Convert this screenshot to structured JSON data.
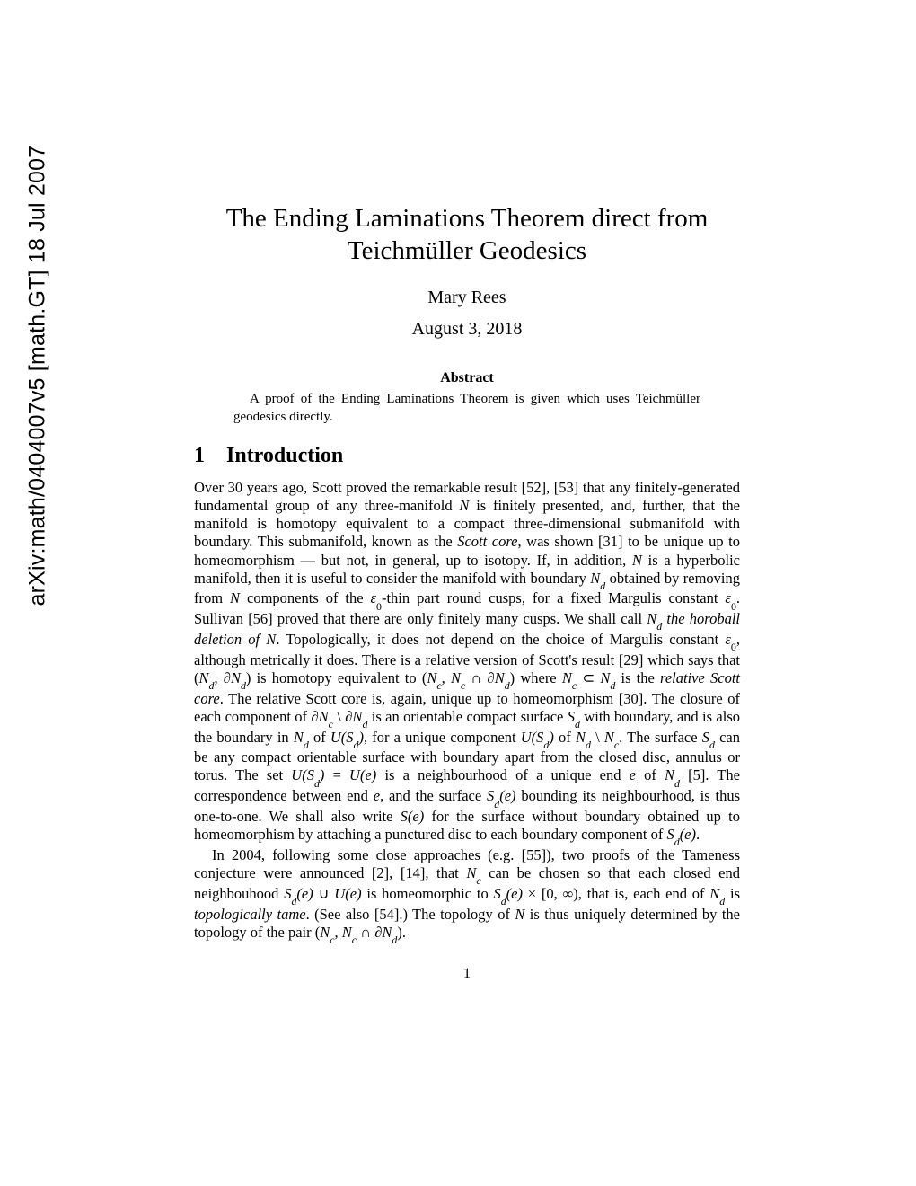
{
  "arxiv": "arXiv:math/0404007v5  [math.GT]  18 Jul 2007",
  "title_line1": "The Ending Laminations Theorem direct from",
  "title_line2": "Teichmüller Geodesics",
  "author": "Mary Rees",
  "date": "August 3, 2018",
  "abstract_heading": "Abstract",
  "abstract_body": "A proof of the Ending Laminations Theorem is given which uses Teichmüller geodesics directly.",
  "section_number": "1",
  "section_title": "Introduction",
  "para1_a": "Over 30 years ago, Scott proved the remarkable result [52], [53] that any finitely-generated fundamental group of any three-manifold ",
  "para1_b": " is finitely presented, and, further, that the manifold is homotopy equivalent to a compact three-dimensional submanifold with boundary. This submanifold, known as the ",
  "para1_c": ", was shown [31] to be unique up to homeomorphism — but not, in general, up to isotopy. If, in addition, ",
  "para1_d": " is a hyperbolic manifold, then it is useful to consider the manifold with boundary ",
  "para1_e": " obtained by removing from ",
  "para1_f": " components of the ",
  "para1_g": "-thin part round cusps, for a fixed Margulis constant ",
  "para1_h": ". Sullivan [56] proved that there are only finitely many cusps. We shall call ",
  "para1_i": ". Topologically, it does not depend on the choice of Margulis constant ",
  "para1_j": ", although metrically it does. There is a relative version of Scott's result [29] which says that (",
  "para1_k": ") is homotopy equivalent to (",
  "para1_l": ") where ",
  "para1_m": " is the ",
  "para1_n": ". The relative Scott core is, again, unique up to homeomorphism [30]. The closure of each component of ",
  "para1_o": " is an orientable compact surface ",
  "para1_p": " with boundary, and is also the boundary in ",
  "para1_q": " of ",
  "para1_r": ", for a unique component ",
  "para1_s": " of ",
  "para1_t": ". The surface ",
  "para1_u": " can be any compact orientable surface with boundary apart from the closed disc, annulus or torus. The set ",
  "para1_v": " is a neighbourhood of a unique end ",
  "para1_w": " of ",
  "para1_x": " [5]. The correspondence between end ",
  "para1_y": ", and the surface ",
  "para1_z": " bounding its neighbourhood, is thus one-to-one. We shall also write ",
  "para1_aa": " for the surface without boundary obtained up to homeomorphism by attaching a punctured disc to each boundary component of ",
  "para1_ab": ".",
  "para2_a": "In 2004, following some close approaches (e.g. [55]), two proofs of the Tameness conjecture were announced [2], [14], that ",
  "para2_b": " can be chosen so that each closed end neighbouhood ",
  "para2_c": " is homeomorphic to ",
  "para2_d": ", that is, each end of ",
  "para2_e": " is ",
  "para2_f": ". (See also [54].) The topology of ",
  "para2_g": " is thus uniquely determined by the topology of the pair (",
  "para2_h": ").",
  "scott_core": "Scott core",
  "horoball_deletion": "the horoball deletion of N",
  "relative_scott_core": "relative Scott core",
  "topologically_tame": "topologically tame",
  "sym_N": "N",
  "sym_Nd": "N",
  "sym_d": "d",
  "sym_c": "c",
  "sym_Nc": "N",
  "sym_eps0": "ε",
  "sym_zero": "0",
  "sym_partial": "∂",
  "sym_Sd": "S",
  "sym_USd": "U(S",
  "sym_USd_close": ")",
  "sym_backslash": " \\ ",
  "sym_e": "e",
  "sym_Se": "S(e)",
  "sym_Sde": "S",
  "sym_Sde_e": "(e)",
  "sym_cup": " ∪ ",
  "sym_Ue": "U(e)",
  "sym_times": " × [0, ∞)",
  "sym_cap": " ∩ ",
  "sym_subset": " ⊂ ",
  "sym_comma": ", ",
  "sym_eq": " = ",
  "page_number": "1"
}
